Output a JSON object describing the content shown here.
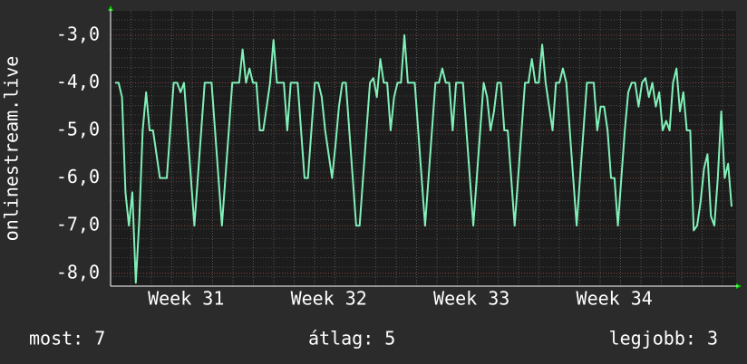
{
  "chart_data": {
    "type": "line",
    "y_label": "onlinestream.live",
    "ylim": [
      -8.27,
      -2.49
    ],
    "yticks": [
      {
        "value": -3,
        "label": "-3,0"
      },
      {
        "value": -4,
        "label": "-4,0"
      },
      {
        "value": -5,
        "label": "-5,0"
      },
      {
        "value": -6,
        "label": "-6,0"
      },
      {
        "value": -7,
        "label": "-7,0"
      },
      {
        "value": -8,
        "label": "-8,0"
      }
    ],
    "xlim": [
      0,
      30.67
    ],
    "xticks": [
      {
        "value": 3.7,
        "label": "Week 31"
      },
      {
        "value": 10.7,
        "label": "Week 32"
      },
      {
        "value": 17.7,
        "label": "Week 33"
      },
      {
        "value": 24.7,
        "label": "Week 34"
      }
    ],
    "grid": true,
    "series": [
      {
        "name": "onlinestream.live",
        "color": "#80f0b8",
        "values": [
          -4,
          -4,
          -4.3,
          -6.3,
          -7,
          -6.3,
          -8.2,
          -6.9,
          -5,
          -4.2,
          -5,
          -5,
          -5.5,
          -6,
          -6,
          -6,
          -5,
          -4,
          -4,
          -4.2,
          -4,
          -5,
          -6,
          -7,
          -6,
          -5,
          -4,
          -4,
          -4,
          -5,
          -6,
          -7,
          -6,
          -5,
          -4,
          -4,
          -4,
          -3.3,
          -4,
          -3.7,
          -4,
          -4,
          -5,
          -5,
          -4.5,
          -4,
          -3.1,
          -4,
          -4,
          -4,
          -5,
          -4,
          -4,
          -4,
          -5,
          -6,
          -6,
          -5,
          -4,
          -4,
          -4.3,
          -5,
          -5.5,
          -6,
          -5.3,
          -4.5,
          -4,
          -4,
          -5,
          -6,
          -7,
          -7,
          -6,
          -5,
          -4,
          -3.9,
          -4.3,
          -3.5,
          -4,
          -4,
          -5,
          -4.3,
          -4,
          -4,
          -3.0,
          -4,
          -4,
          -4,
          -5,
          -6,
          -7,
          -6,
          -5,
          -4,
          -4,
          -3.7,
          -4,
          -4,
          -5,
          -4,
          -4,
          -4,
          -5,
          -6,
          -7,
          -6,
          -5,
          -4,
          -4.3,
          -5,
          -4.6,
          -4,
          -4,
          -5,
          -5,
          -6,
          -7,
          -6,
          -5,
          -4,
          -4,
          -3.5,
          -4,
          -4,
          -3.2,
          -4,
          -4.5,
          -5,
          -4,
          -4,
          -3.7,
          -4,
          -5,
          -6,
          -7,
          -6,
          -5,
          -4,
          -4,
          -4,
          -5,
          -4.5,
          -4.5,
          -5,
          -6,
          -6,
          -7,
          -6,
          -5,
          -4.2,
          -4,
          -4,
          -4.5,
          -4,
          -3.9,
          -4.3,
          -4,
          -4.5,
          -4.2,
          -5,
          -4.8,
          -5,
          -4,
          -3.7,
          -4.6,
          -4.2,
          -5,
          -5,
          -7.1,
          -7,
          -6.5,
          -5.8,
          -5.5,
          -6.8,
          -7,
          -6,
          -4.6,
          -6,
          -5.7,
          -6.6
        ]
      }
    ]
  },
  "footer": {
    "current": "most: 7",
    "average": "átlag: 5",
    "best": "legjobb: 3"
  }
}
